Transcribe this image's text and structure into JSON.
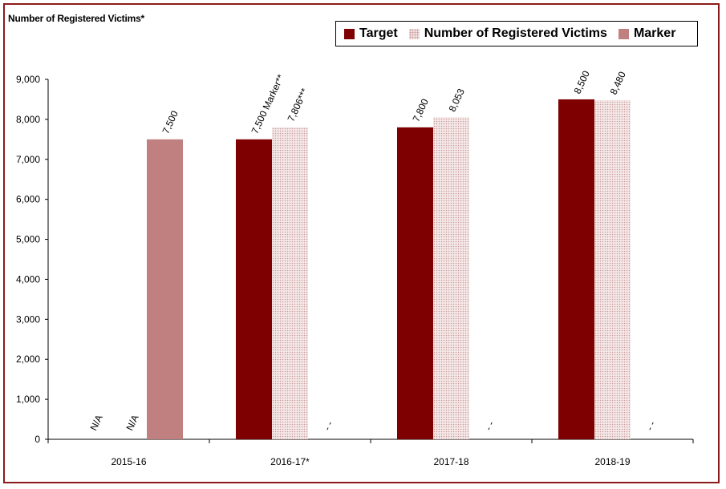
{
  "chart_data": {
    "type": "bar",
    "ylabel": "Number of Registered Victims*",
    "categories": [
      "2015-16",
      "2016-17*",
      "2017-18",
      "2018-19"
    ],
    "ylim": [
      0,
      9000
    ],
    "yticks": [
      "0",
      "1,000",
      "2,000",
      "3,000",
      "4,000",
      "5,000",
      "6,000",
      "7,000",
      "8,000",
      "9,000"
    ],
    "ytick_values": [
      0,
      1000,
      2000,
      3000,
      4000,
      5000,
      6000,
      7000,
      8000,
      9000
    ],
    "grid": false,
    "legend_position": "top-right",
    "series": [
      {
        "name": "Target",
        "color": "#7f0000",
        "pattern": "solid",
        "values": [
          null,
          7500,
          7800,
          8500
        ],
        "labels": [
          "N/A",
          "7,500 Marker**",
          "7,800",
          "8,500"
        ]
      },
      {
        "name": "Number of Registered Victims",
        "color": "#e8c8c8",
        "pattern": "dotted",
        "values": [
          null,
          7806,
          8053,
          8480
        ],
        "labels": [
          "N/A",
          "7,806***",
          "8,053",
          "8,480"
        ]
      },
      {
        "name": "Marker",
        "color": "#c08080",
        "pattern": "solid",
        "values": [
          7500,
          null,
          null,
          null
        ],
        "labels": [
          "7,500",
          "- -",
          "- -",
          "- -"
        ]
      }
    ]
  }
}
